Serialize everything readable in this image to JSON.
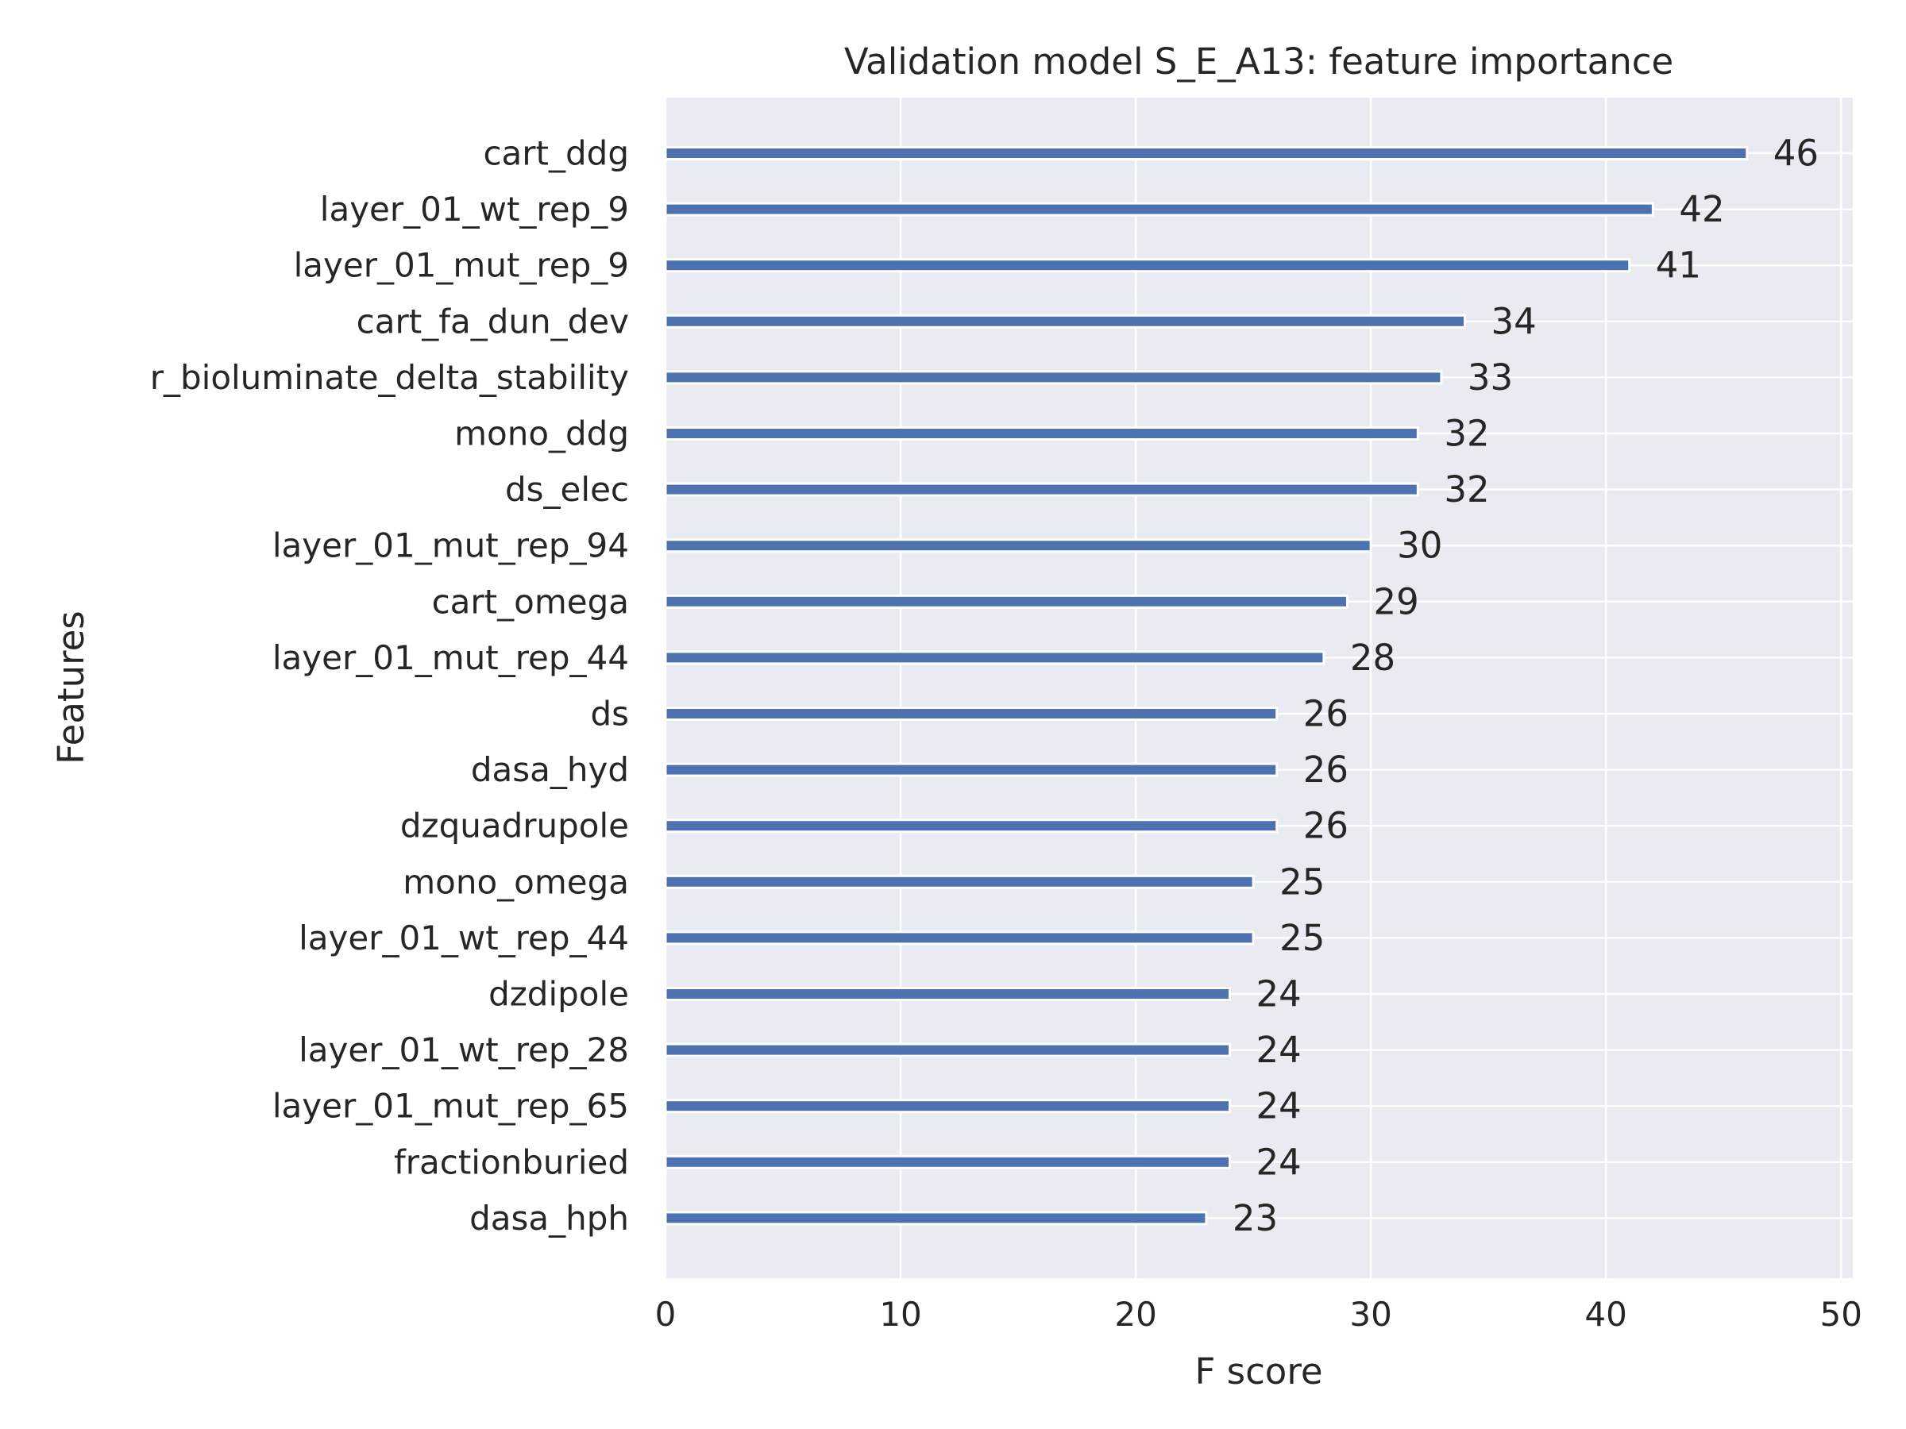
{
  "chart_data": {
    "type": "bar",
    "orientation": "horizontal",
    "title": "Validation model S_E_A13: feature importance",
    "xlabel": "F score",
    "ylabel": "Features",
    "xlim": [
      0,
      50.5
    ],
    "xticks": [
      0,
      10,
      20,
      30,
      40,
      50
    ],
    "grid": true,
    "bar_color": "#4c72b0",
    "background_color": "#eaeaf2",
    "categories": [
      "cart_ddg",
      "layer_01_wt_rep_9",
      "layer_01_mut_rep_9",
      "cart_fa_dun_dev",
      "r_bioluminate_delta_stability",
      "mono_ddg",
      "ds_elec",
      "layer_01_mut_rep_94",
      "cart_omega",
      "layer_01_mut_rep_44",
      "ds",
      "dasa_hyd",
      "dzquadrupole",
      "mono_omega",
      "layer_01_wt_rep_44",
      "dzdipole",
      "layer_01_wt_rep_28",
      "layer_01_mut_rep_65",
      "fractionburied",
      "dasa_hph"
    ],
    "values": [
      46,
      42,
      41,
      34,
      33,
      32,
      32,
      30,
      29,
      28,
      26,
      26,
      26,
      25,
      25,
      24,
      24,
      24,
      24,
      23
    ],
    "data_labels": [
      "46",
      "42",
      "41",
      "34",
      "33",
      "32",
      "32",
      "30",
      "29",
      "28",
      "26",
      "26",
      "26",
      "25",
      "25",
      "24",
      "24",
      "24",
      "24",
      "23"
    ]
  }
}
